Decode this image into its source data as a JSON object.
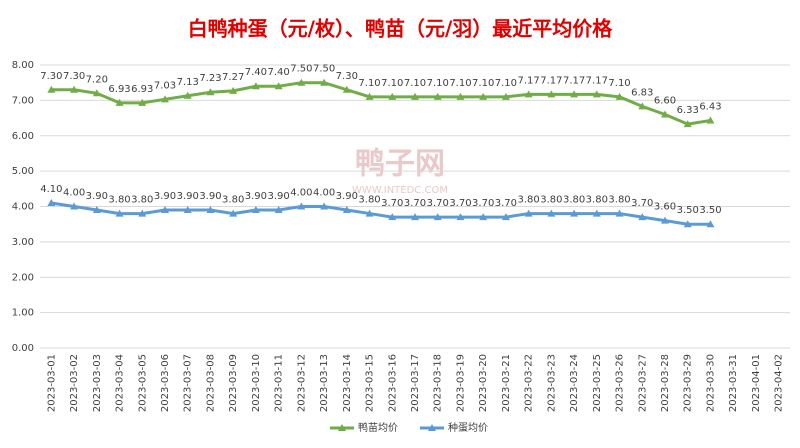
{
  "chart_data": {
    "type": "line",
    "title": "白鸭种蛋（元/枚）、鸭苗（元/羽）最近平均价格",
    "watermark": [
      "鸭子网",
      "WWW.INTEDC.COM"
    ],
    "categories": [
      "2023-03-01",
      "2023-03-02",
      "2023-03-03",
      "2023-03-04",
      "2023-03-05",
      "2023-03-06",
      "2023-03-07",
      "2023-03-08",
      "2023-03-09",
      "2023-03-10",
      "2023-03-11",
      "2023-03-12",
      "2023-03-13",
      "2023-03-14",
      "2023-03-15",
      "2023-03-16",
      "2023-03-17",
      "2023-03-18",
      "2023-03-19",
      "2023-03-20",
      "2023-03-21",
      "2023-03-22",
      "2023-03-23",
      "2023-03-24",
      "2023-03-25",
      "2023-03-26",
      "2023-03-27",
      "2023-03-28",
      "2023-03-29",
      "2023-03-30",
      "2023-03-31",
      "2023-04-01",
      "2023-04-02"
    ],
    "series": [
      {
        "name": "鸭苗均价",
        "color": "#70ad47",
        "values": [
          7.3,
          7.3,
          7.2,
          6.93,
          6.93,
          7.03,
          7.13,
          7.23,
          7.27,
          7.4,
          7.4,
          7.5,
          7.5,
          7.3,
          7.1,
          7.1,
          7.1,
          7.1,
          7.1,
          7.1,
          7.1,
          7.17,
          7.17,
          7.17,
          7.17,
          7.1,
          6.83,
          6.6,
          6.33,
          6.43,
          null,
          null,
          null
        ],
        "value_labels": [
          "7.30",
          "7.30",
          "7.20",
          "6.93",
          "6.93",
          "7.03",
          "7.13",
          "7.23",
          "7.27",
          "7.40",
          "7.40",
          "7.50",
          "7.50",
          "7.30",
          "7.10",
          "7.10",
          "7.10",
          "7.10",
          "7.10",
          "7.10",
          "7.10",
          "7.17",
          "7.17",
          "7.17",
          "7.17",
          "7.10",
          "6.83",
          "6.60",
          "6.33",
          "6.43",
          null,
          null,
          null
        ]
      },
      {
        "name": "种蛋均价",
        "color": "#5b9bd5",
        "values": [
          4.1,
          4.0,
          3.9,
          3.8,
          3.8,
          3.9,
          3.9,
          3.9,
          3.8,
          3.9,
          3.9,
          4.0,
          4.0,
          3.9,
          3.8,
          3.7,
          3.7,
          3.7,
          3.7,
          3.7,
          3.7,
          3.8,
          3.8,
          3.8,
          3.8,
          3.8,
          3.7,
          3.6,
          3.5,
          3.5,
          null,
          null,
          null
        ],
        "value_labels": [
          "4.10",
          "4.00",
          "3.90",
          "3.80",
          "3.80",
          "3.90",
          "3.90",
          "3.90",
          "3.80",
          "3.90",
          "3.90",
          "4.00",
          "4.00",
          "3.90",
          "3.80",
          "3.70",
          "3.70",
          "3.70",
          "3.70",
          "3.70",
          "3.70",
          "3.80",
          "3.80",
          "3.80",
          "3.80",
          "3.80",
          "3.70",
          "3.60",
          "3.50",
          "3.50",
          null,
          null,
          null
        ]
      }
    ],
    "ylim": [
      0,
      8
    ],
    "yticks": [
      {
        "value": 0,
        "label": "0.00"
      },
      {
        "value": 1,
        "label": "1.00"
      },
      {
        "value": 2,
        "label": "2.00"
      },
      {
        "value": 3,
        "label": "3.00"
      },
      {
        "value": 4,
        "label": "4.00"
      },
      {
        "value": 5,
        "label": "5.00"
      },
      {
        "value": 6,
        "label": "6.00"
      },
      {
        "value": 7,
        "label": "7.00"
      },
      {
        "value": 8,
        "label": "8.00"
      }
    ],
    "grid": true,
    "legend": "bottom"
  }
}
